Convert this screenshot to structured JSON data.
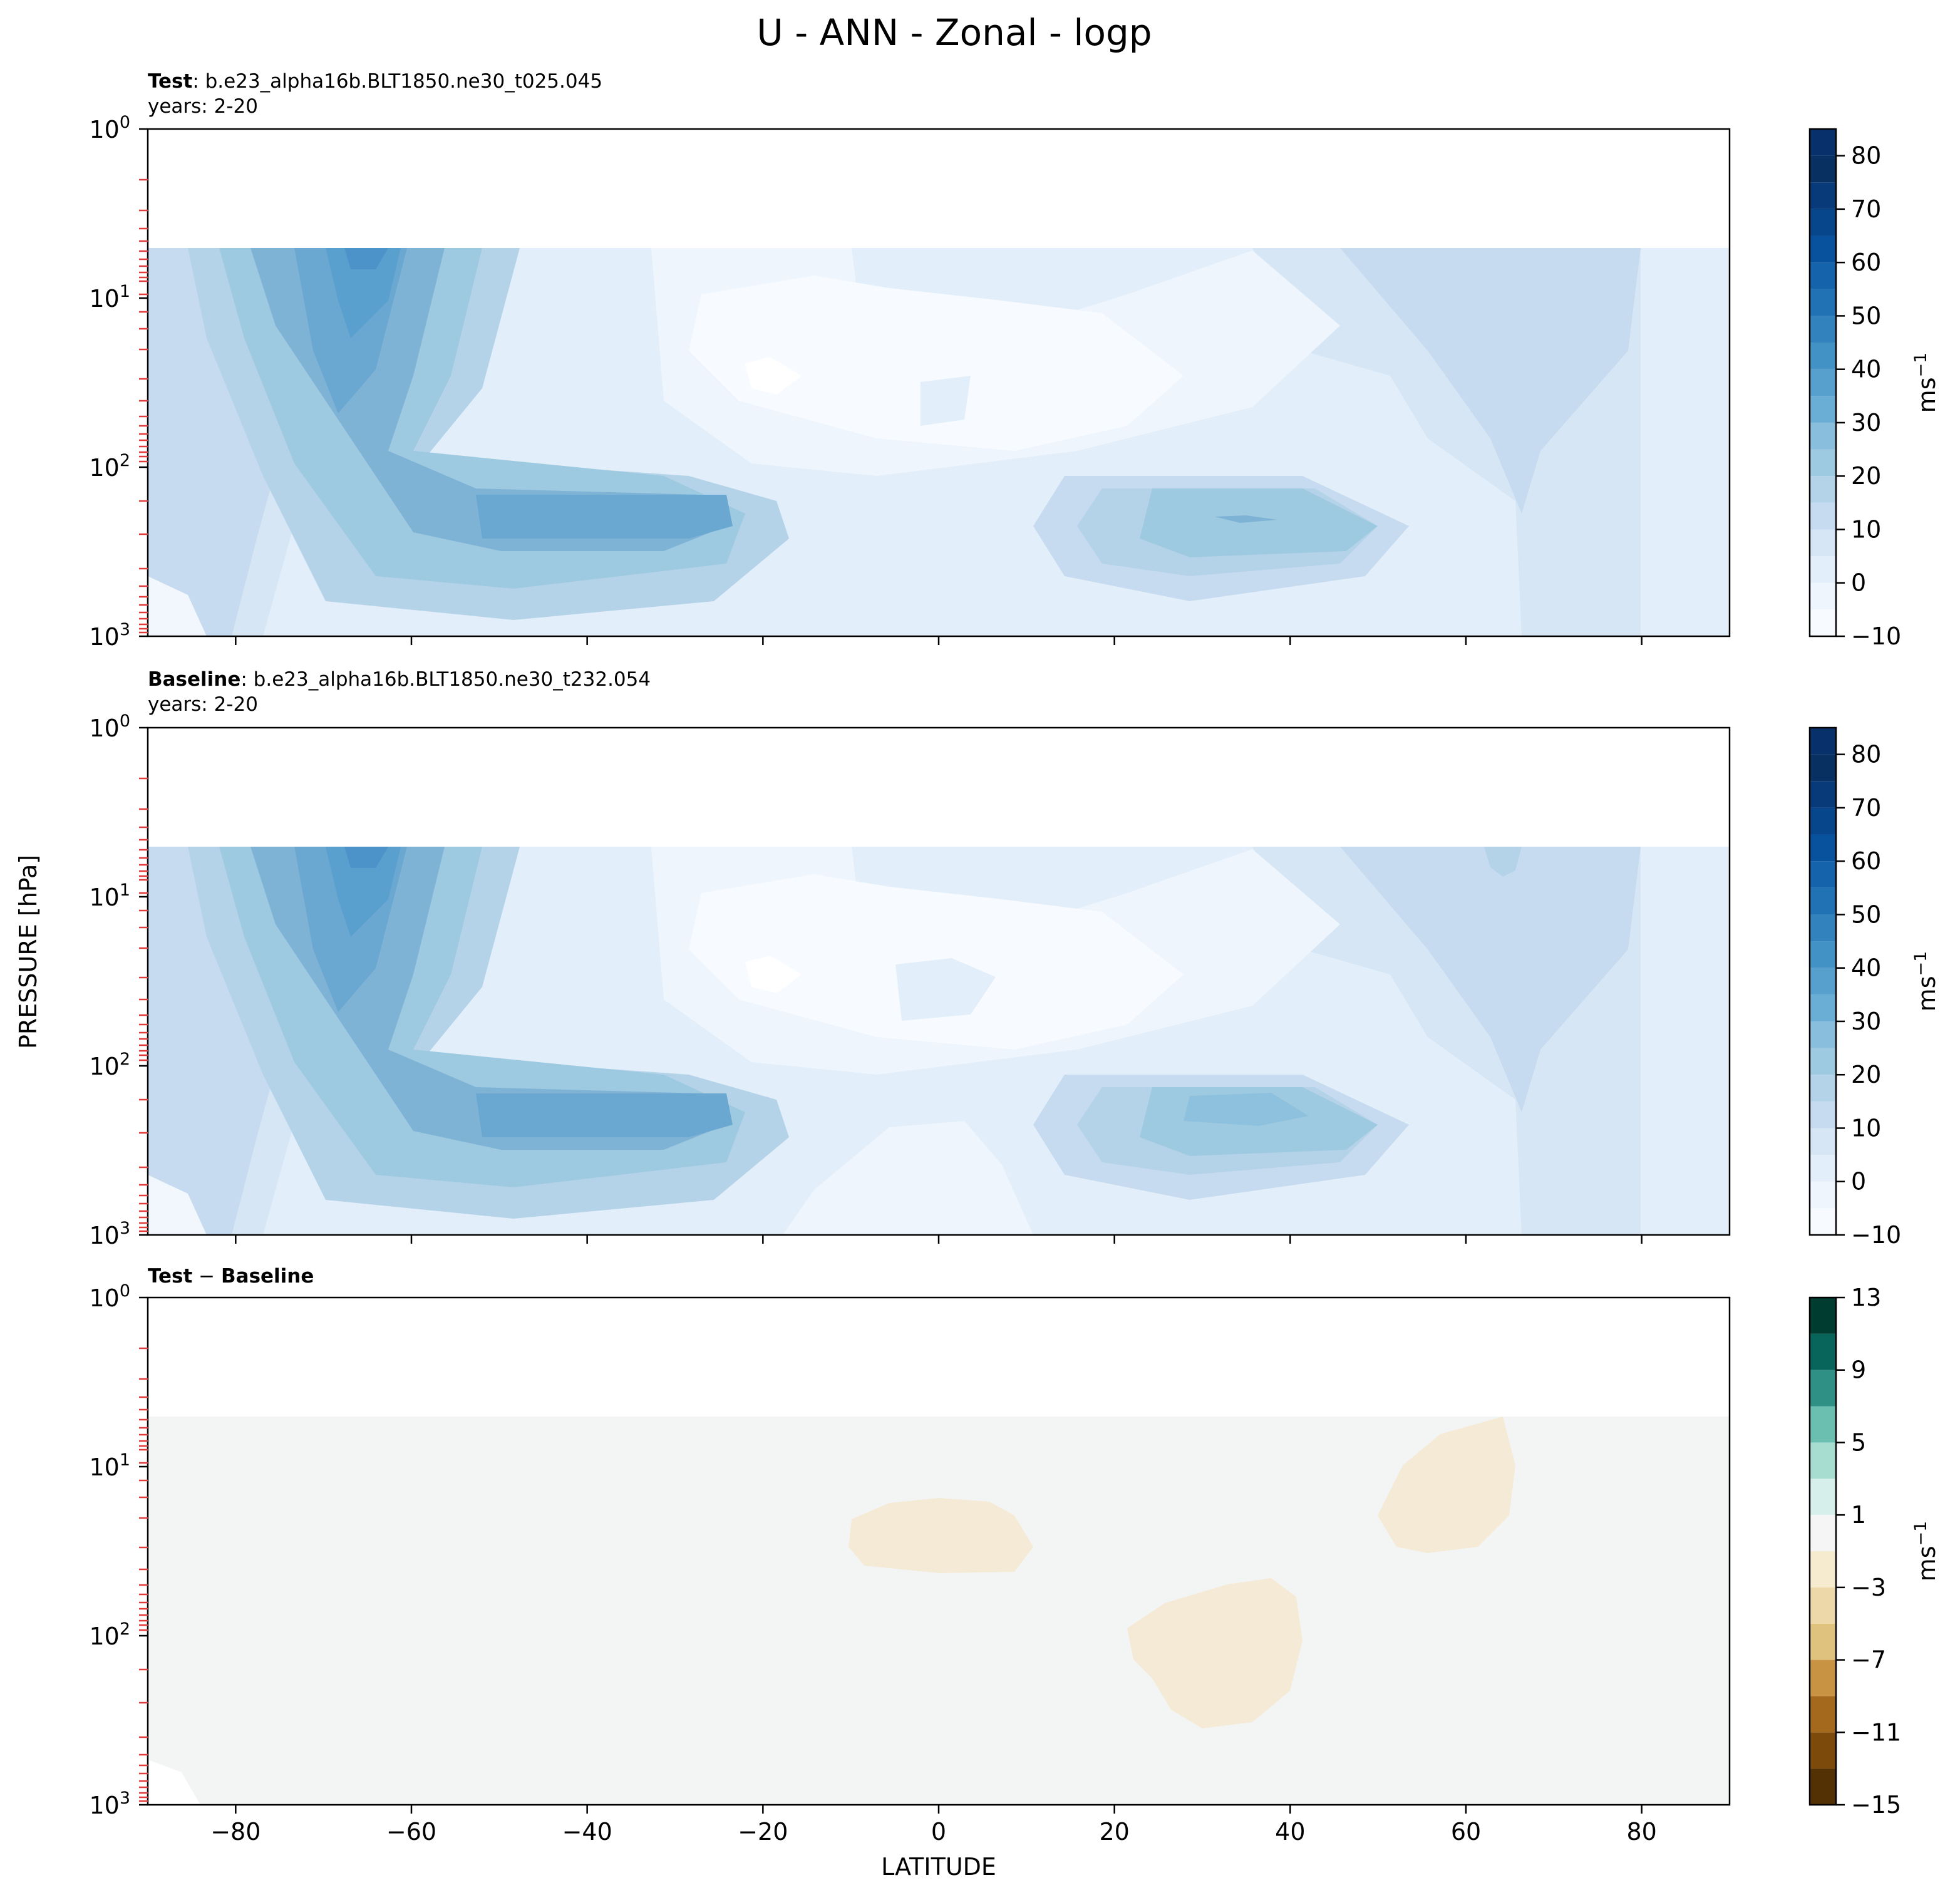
{
  "suptitle": "U - ANN - Zonal - logp",
  "shared_xlabel": "LATITUDE",
  "shared_ylabel": "PRESSURE [hPa]",
  "colorbar_label": "ms",
  "colorbar_label_exp": "−1",
  "y_tick_base": "10",
  "chart_data": [
    {
      "type": "heatmap",
      "plot": "contourf",
      "name_bold": "Test",
      "name_rest": ": b.e23_alpha16b.BLT1850.ne30_t025.045",
      "subtitle": "years: 2-20",
      "x_range": [
        -90,
        90
      ],
      "y_range_hPa": [
        1000,
        1
      ],
      "y_scale": "log",
      "data_top_hPa": 5,
      "x_ticks": [
        "−80",
        "−60",
        "−40",
        "−20",
        "0",
        "20",
        "40",
        "60",
        "80"
      ],
      "x_tick_values": [
        -80,
        -60,
        -40,
        -20,
        0,
        20,
        40,
        60,
        80
      ],
      "y_tick_exponents": [
        "0",
        "1",
        "2",
        "3"
      ],
      "colormap": "Blues",
      "colorbar_levels": [
        -10,
        -5,
        0,
        5,
        10,
        15,
        20,
        25,
        30,
        35,
        40,
        45,
        50,
        55,
        60,
        65,
        70,
        75,
        80,
        85
      ],
      "colorbar_ticks": [
        "80",
        "70",
        "60",
        "50",
        "40",
        "30",
        "20",
        "10",
        "0",
        "−10"
      ],
      "features": [
        {
          "desc": "southern polar night jet core",
          "lat": -60,
          "pressure_hPa": 5,
          "value_ms": 40
        },
        {
          "desc": "southern subtropical jet core",
          "lat": -40,
          "pressure_hPa": 200,
          "value_ms": 35
        },
        {
          "desc": "northern subtropical jet core",
          "lat": 35,
          "pressure_hPa": 200,
          "value_ms": 25
        },
        {
          "desc": "stratospheric easterly minimum",
          "lat": -18,
          "pressure_hPa": 25,
          "value_ms": -10
        }
      ]
    },
    {
      "type": "heatmap",
      "plot": "contourf",
      "name_bold": "Baseline",
      "name_rest": ": b.e23_alpha16b.BLT1850.ne30_t232.054",
      "subtitle": "years: 2-20",
      "x_range": [
        -90,
        90
      ],
      "y_range_hPa": [
        1000,
        1
      ],
      "y_scale": "log",
      "data_top_hPa": 5,
      "x_ticks": [
        "−80",
        "−60",
        "−40",
        "−20",
        "0",
        "20",
        "40",
        "60",
        "80"
      ],
      "x_tick_values": [
        -80,
        -60,
        -40,
        -20,
        0,
        20,
        40,
        60,
        80
      ],
      "y_tick_exponents": [
        "0",
        "1",
        "2",
        "3"
      ],
      "colormap": "Blues",
      "colorbar_levels": [
        -10,
        -5,
        0,
        5,
        10,
        15,
        20,
        25,
        30,
        35,
        40,
        45,
        50,
        55,
        60,
        65,
        70,
        75,
        80,
        85
      ],
      "colorbar_ticks": [
        "80",
        "70",
        "60",
        "50",
        "40",
        "30",
        "20",
        "10",
        "0",
        "−10"
      ],
      "features": [
        {
          "desc": "southern polar night jet core",
          "lat": -60,
          "pressure_hPa": 5,
          "value_ms": 40
        },
        {
          "desc": "southern subtropical jet core",
          "lat": -40,
          "pressure_hPa": 200,
          "value_ms": 35
        },
        {
          "desc": "northern subtropical jet core",
          "lat": 35,
          "pressure_hPa": 200,
          "value_ms": 30
        },
        {
          "desc": "stratospheric easterly minimum",
          "lat": -18,
          "pressure_hPa": 25,
          "value_ms": -10
        }
      ]
    },
    {
      "type": "heatmap",
      "plot": "contourf",
      "name_bold": "Test",
      "name_sep": " − ",
      "name_bold2": "Baseline",
      "x_range": [
        -90,
        90
      ],
      "y_range_hPa": [
        1000,
        1
      ],
      "y_scale": "log",
      "data_top_hPa": 5,
      "x_ticks": [
        "−80",
        "−60",
        "−40",
        "−20",
        "0",
        "20",
        "40",
        "60",
        "80"
      ],
      "x_tick_values": [
        -80,
        -60,
        -40,
        -20,
        0,
        20,
        40,
        60,
        80
      ],
      "y_tick_exponents": [
        "0",
        "1",
        "2",
        "3"
      ],
      "colormap": "BrBG",
      "colorbar_levels": [
        -15,
        -13,
        -11,
        -9,
        -7,
        -5,
        -3,
        -1,
        1,
        3,
        5,
        7,
        9,
        11,
        13
      ],
      "colorbar_ticks": [
        "13",
        "9",
        "5",
        "1",
        "−3",
        "−7",
        "−11",
        "−15"
      ],
      "features": [
        {
          "desc": "negative difference region",
          "lat": 0,
          "pressure_hPa": 25,
          "value_ms": -2
        },
        {
          "desc": "negative difference region",
          "lat": 33,
          "pressure_hPa": 150,
          "value_ms": -2
        },
        {
          "desc": "negative difference region",
          "lat": 58,
          "pressure_hPa": 15,
          "value_ms": -2
        }
      ]
    }
  ]
}
